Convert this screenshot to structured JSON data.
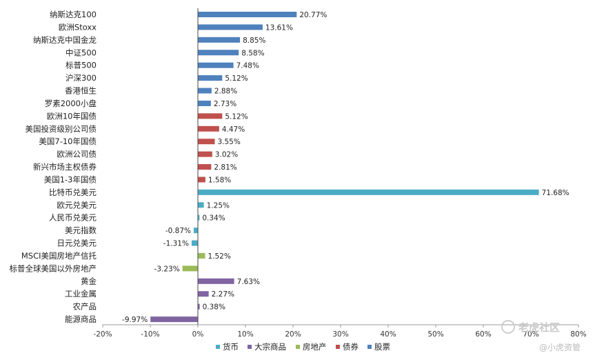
{
  "chart_data": {
    "type": "bar",
    "orientation": "horizontal",
    "title": "",
    "xlabel": "",
    "ylabel": "",
    "xlim": [
      -20,
      80
    ],
    "x_ticks": [
      "-20%",
      "-10%",
      "0%",
      "10%",
      "20%",
      "30%",
      "40%",
      "50%",
      "60%",
      "70%",
      "80%"
    ],
    "x_tick_values": [
      -20,
      -10,
      0,
      10,
      20,
      30,
      40,
      50,
      60,
      70,
      80
    ],
    "grid": false,
    "legend_position": "bottom",
    "categories": [
      "纳斯达克100",
      "欧洲Stoxx",
      "纳斯达克中国金龙",
      "中证500",
      "标普500",
      "沪深300",
      "香港恒生",
      "罗素2000小盘",
      "欧洲10年国债",
      "美国投资级别公司债",
      "美国7-10年国债",
      "欧洲公司债",
      "新兴市场主权债券",
      "美国1-3年国债",
      "比特币兑美元",
      "欧元兑美元",
      "人民币兑美元",
      "美元指数",
      "日元兑美元",
      "MSCI美国房地产信托",
      "标普全球美国以外房地产",
      "黄金",
      "工业金属",
      "农产品",
      "能源商品"
    ],
    "values": [
      20.77,
      13.61,
      8.85,
      8.58,
      7.48,
      5.12,
      2.88,
      2.73,
      5.12,
      4.47,
      3.55,
      3.02,
      2.81,
      1.58,
      71.68,
      1.25,
      0.34,
      -0.87,
      -1.31,
      1.52,
      -3.23,
      7.63,
      2.27,
      0.38,
      -9.97
    ],
    "value_labels": [
      "20.77%",
      "13.61%",
      "8.85%",
      "8.58%",
      "7.48%",
      "5.12%",
      "2.88%",
      "2.73%",
      "5.12%",
      "4.47%",
      "3.55%",
      "3.02%",
      "2.81%",
      "1.58%",
      "71.68%",
      "1.25%",
      "0.34%",
      "-0.87%",
      "-1.31%",
      "1.52%",
      "-3.23%",
      "7.63%",
      "2.27%",
      "0.38%",
      "-9.97%"
    ],
    "groups": [
      "股票",
      "股票",
      "股票",
      "股票",
      "股票",
      "股票",
      "股票",
      "股票",
      "债券",
      "债券",
      "债券",
      "债券",
      "债券",
      "债券",
      "货币",
      "货币",
      "货币",
      "货币",
      "货币",
      "房地产",
      "房地产",
      "大宗商品",
      "大宗商品",
      "大宗商品",
      "大宗商品"
    ],
    "series": [
      {
        "name": "货币",
        "color": "#4BACC6"
      },
      {
        "name": "大宗商品",
        "color": "#8064A2"
      },
      {
        "name": "房地产",
        "color": "#9BBB59"
      },
      {
        "name": "债券",
        "color": "#C0504D"
      },
      {
        "name": "股票",
        "color": "#4F81BD"
      }
    ]
  },
  "watermark": {
    "brand": "老虎社区",
    "handle": "@小虎资管"
  }
}
